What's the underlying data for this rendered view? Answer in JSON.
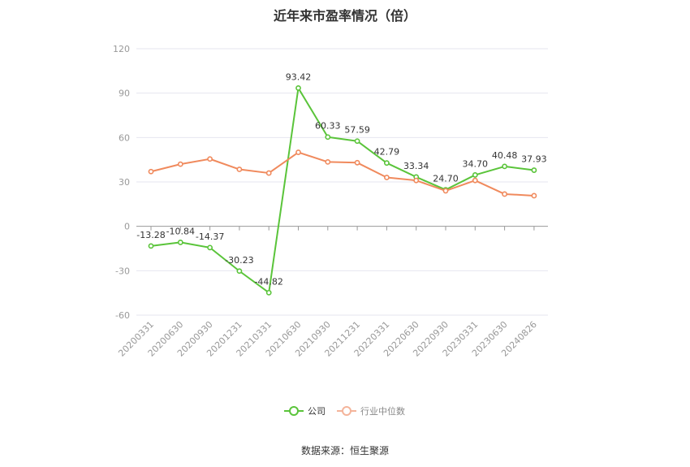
{
  "chart_data": {
    "type": "line",
    "title": "近年来市盈率情况（倍）",
    "categories": [
      "20200331",
      "20200630",
      "20200930",
      "20201231",
      "20210331",
      "20210630",
      "20210930",
      "20211231",
      "20220331",
      "20220630",
      "20220930",
      "20230331",
      "20230630",
      "20240826"
    ],
    "series": [
      {
        "name": "公司",
        "color": "#5ac43a",
        "values": [
          -13.28,
          -10.84,
          -14.37,
          -30.23,
          -44.82,
          93.42,
          60.33,
          57.59,
          42.79,
          33.34,
          24.7,
          34.7,
          40.48,
          37.93
        ],
        "labels": [
          "-13.28",
          "-10.84",
          "-14.37",
          "-30.23",
          "-44.82",
          "93.42",
          "60.33",
          "57.59",
          "42.79",
          "33.34",
          "24.70",
          "34.70",
          "40.48",
          "37.93"
        ]
      },
      {
        "name": "行业中位数",
        "color": "#f08a5d",
        "values": [
          37.0,
          42.0,
          45.5,
          38.5,
          36.0,
          50.0,
          43.5,
          43.0,
          33.0,
          31.0,
          24.0,
          31.0,
          21.8,
          20.7
        ]
      }
    ],
    "yticks": [
      "120",
      "90",
      "60",
      "30",
      "0",
      "-30",
      "-60"
    ],
    "ylim": [
      -60,
      120
    ],
    "grid": true,
    "legend_position": "bottom"
  },
  "source_label": "数据来源：恒生聚源"
}
